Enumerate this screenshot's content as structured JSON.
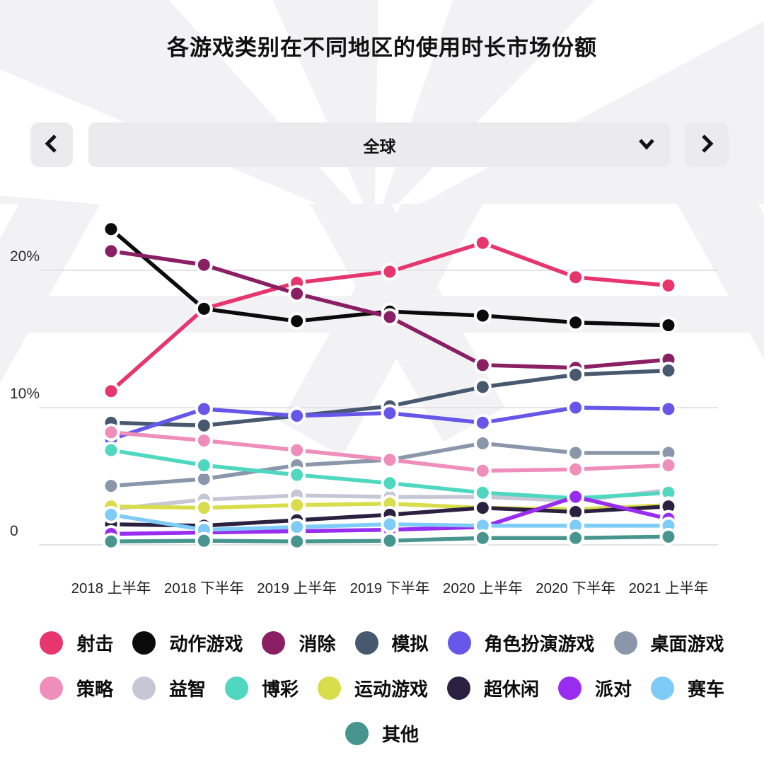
{
  "page": {
    "title": "各游戏类别在不同地区的使用时长市场份额"
  },
  "region_selector": {
    "value": "全球",
    "prev_icon": "chevron-left",
    "next_icon": "chevron-right",
    "dropdown_icon": "chevron-down"
  },
  "chart_data": {
    "type": "line",
    "title": "各游戏类别在不同地区的使用时长市场份额",
    "categories": [
      "2018 上半年",
      "2018 下半年",
      "2019 上半年",
      "2019 下半年",
      "2020 上半年",
      "2020 下半年",
      "2021 上半年"
    ],
    "series": [
      {
        "name": "射击",
        "color": "#E7356E",
        "values": [
          11.2,
          17.2,
          19.1,
          19.9,
          22.0,
          19.5,
          18.9
        ]
      },
      {
        "name": "动作游戏",
        "color": "#0B0B0B",
        "values": [
          23.0,
          17.2,
          16.3,
          17.0,
          16.7,
          16.2,
          16.0
        ]
      },
      {
        "name": "消除",
        "color": "#8A1F63",
        "values": [
          21.4,
          20.4,
          18.3,
          16.6,
          13.1,
          12.9,
          13.5
        ]
      },
      {
        "name": "模拟",
        "color": "#47586F",
        "values": [
          8.9,
          8.7,
          9.4,
          10.1,
          11.5,
          12.4,
          12.7
        ]
      },
      {
        "name": "角色扮演游戏",
        "color": "#6657E8",
        "values": [
          7.7,
          9.9,
          9.4,
          9.6,
          8.9,
          10.0,
          9.9
        ]
      },
      {
        "name": "桌面游戏",
        "color": "#8A96A9",
        "values": [
          4.3,
          4.8,
          5.8,
          6.2,
          7.4,
          6.7,
          6.7
        ]
      },
      {
        "name": "策略",
        "color": "#EF8EBB",
        "values": [
          8.2,
          7.6,
          6.9,
          6.2,
          5.4,
          5.5,
          5.8
        ]
      },
      {
        "name": "益智",
        "color": "#C6C7D6",
        "values": [
          2.6,
          3.3,
          3.6,
          3.5,
          3.5,
          3.2,
          4.0
        ]
      },
      {
        "name": "博彩",
        "color": "#4FD7BF",
        "values": [
          6.9,
          5.8,
          5.1,
          4.5,
          3.8,
          3.4,
          3.8
        ]
      },
      {
        "name": "运动游戏",
        "color": "#D8DD4B",
        "values": [
          2.8,
          2.7,
          2.9,
          3.0,
          2.7,
          2.6,
          2.9
        ]
      },
      {
        "name": "超休闲",
        "color": "#2B2040",
        "values": [
          1.5,
          1.4,
          1.8,
          2.2,
          2.7,
          2.4,
          2.8
        ]
      },
      {
        "name": "派对",
        "color": "#982CEF",
        "values": [
          0.8,
          0.9,
          1.0,
          1.1,
          1.3,
          3.5,
          1.9
        ]
      },
      {
        "name": "赛车",
        "color": "#7ECBF7",
        "values": [
          2.2,
          1.1,
          1.3,
          1.5,
          1.4,
          1.4,
          1.4
        ]
      },
      {
        "name": "其他",
        "color": "#47958E",
        "values": [
          0.25,
          0.3,
          0.25,
          0.3,
          0.5,
          0.5,
          0.6
        ]
      }
    ],
    "yticks": [
      {
        "value": 0,
        "label": "0"
      },
      {
        "value": 10,
        "label": "10%"
      },
      {
        "value": 20,
        "label": "20%"
      }
    ],
    "ylim": [
      0,
      24.5
    ],
    "grid": true,
    "marker": "circle",
    "legend_position": "bottom",
    "legend_rows": [
      6,
      7,
      1
    ]
  }
}
